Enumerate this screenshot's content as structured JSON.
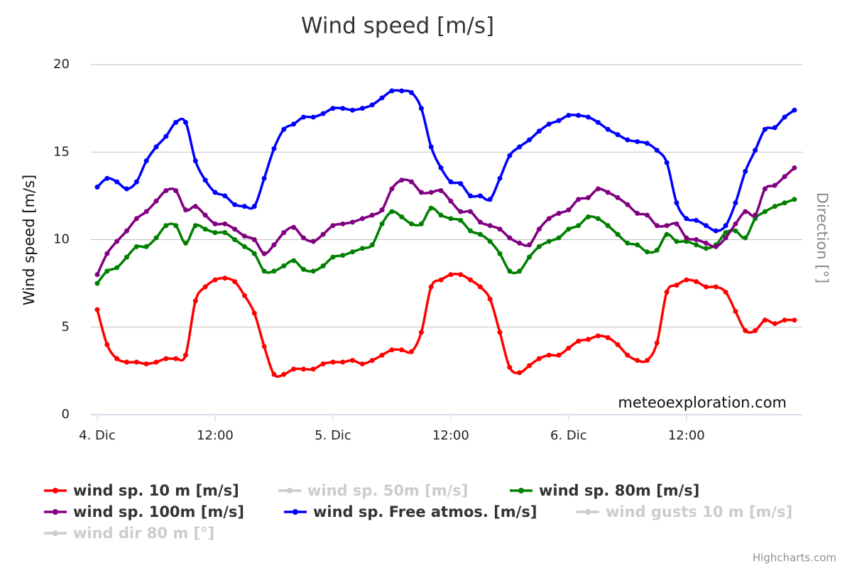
{
  "chart_data": {
    "type": "line",
    "title": "Wind speed [m/s]",
    "y_title": "Wind speed [m/s]",
    "y2_title": "Direction [°]",
    "credit": "meteoexploration.com",
    "credits_link": "Highcharts.com",
    "x": [
      0,
      1,
      2,
      3,
      4,
      5,
      6,
      7,
      8,
      9,
      10,
      11,
      12,
      13,
      14,
      15,
      16,
      17,
      18,
      19,
      20,
      21,
      22,
      23,
      24,
      25,
      26,
      27,
      28,
      29,
      30,
      31,
      32,
      33,
      34,
      35,
      36,
      37,
      38,
      39,
      40,
      41,
      42,
      43,
      44,
      45,
      46,
      47,
      48,
      49,
      50,
      51,
      52,
      53,
      54,
      55,
      56,
      57,
      58,
      59,
      60,
      61,
      62,
      63,
      64,
      65,
      66,
      67,
      68,
      69,
      70,
      71
    ],
    "xlim": [
      -0.65,
      71.8
    ],
    "xticks": [
      {
        "value": 0,
        "label": "4. Dic"
      },
      {
        "value": 12,
        "label": "12:00"
      },
      {
        "value": 24,
        "label": "5. Dic"
      },
      {
        "value": 36,
        "label": "12:00"
      },
      {
        "value": 48,
        "label": "6. Dic"
      },
      {
        "value": 60,
        "label": "12:00"
      }
    ],
    "ylim": [
      0,
      20
    ],
    "yticks": [
      0,
      5,
      10,
      15,
      20
    ],
    "grid": true,
    "legend": "bottom",
    "series": [
      {
        "name": "wind sp. 10 m [m/s]",
        "color": "#ff0000",
        "values": [
          6.0,
          4.0,
          3.2,
          3.0,
          3.0,
          2.9,
          3.0,
          3.2,
          3.2,
          3.4,
          6.5,
          7.3,
          7.7,
          7.8,
          7.6,
          6.8,
          5.8,
          3.9,
          2.3,
          2.3,
          2.6,
          2.6,
          2.6,
          2.9,
          3.0,
          3.0,
          3.1,
          2.9,
          3.1,
          3.4,
          3.7,
          3.7,
          3.6,
          4.7,
          7.3,
          7.7,
          8.0,
          8.0,
          7.7,
          7.3,
          6.6,
          4.7,
          2.7,
          2.4,
          2.8,
          3.2,
          3.4,
          3.4,
          3.8,
          4.2,
          4.3,
          4.5,
          4.4,
          4.0,
          3.4,
          3.1,
          3.1,
          4.1,
          7.0,
          7.4,
          7.7,
          7.6,
          7.3,
          7.3,
          7.0,
          5.9,
          4.8,
          4.8,
          5.4,
          5.2,
          5.4,
          5.4
        ]
      },
      {
        "name": "wind sp. 50m [m/s]",
        "visible": false
      },
      {
        "name": "wind sp. 80m [m/s]",
        "color": "#008000",
        "values": [
          7.5,
          8.2,
          8.4,
          9.0,
          9.6,
          9.6,
          10.1,
          10.8,
          10.8,
          9.8,
          10.8,
          10.6,
          10.4,
          10.4,
          10.0,
          9.6,
          9.2,
          8.2,
          8.2,
          8.5,
          8.8,
          8.3,
          8.2,
          8.5,
          9.0,
          9.1,
          9.3,
          9.5,
          9.7,
          10.9,
          11.6,
          11.3,
          10.9,
          10.9,
          11.8,
          11.4,
          11.2,
          11.1,
          10.5,
          10.3,
          9.9,
          9.2,
          8.2,
          8.2,
          9.0,
          9.6,
          9.9,
          10.1,
          10.6,
          10.8,
          11.3,
          11.2,
          10.8,
          10.3,
          9.8,
          9.7,
          9.3,
          9.4,
          10.3,
          9.9,
          9.9,
          9.7,
          9.5,
          9.7,
          10.4,
          10.5,
          10.1,
          11.2,
          11.6,
          11.9,
          12.1,
          12.3
        ]
      },
      {
        "name": "wind sp. 100m [m/s]",
        "color": "#800080",
        "values": [
          8.0,
          9.2,
          9.9,
          10.5,
          11.2,
          11.6,
          12.2,
          12.8,
          12.8,
          11.7,
          11.9,
          11.4,
          10.9,
          10.9,
          10.6,
          10.2,
          10.0,
          9.2,
          9.7,
          10.4,
          10.7,
          10.1,
          9.9,
          10.3,
          10.8,
          10.9,
          11.0,
          11.2,
          11.4,
          11.7,
          12.9,
          13.4,
          13.3,
          12.7,
          12.7,
          12.8,
          12.2,
          11.6,
          11.6,
          11.0,
          10.8,
          10.6,
          10.1,
          9.8,
          9.7,
          10.6,
          11.2,
          11.5,
          11.7,
          12.3,
          12.4,
          12.9,
          12.7,
          12.4,
          12.0,
          11.5,
          11.4,
          10.8,
          10.8,
          10.9,
          10.1,
          10.0,
          9.8,
          9.6,
          10.1,
          10.9,
          11.6,
          11.4,
          12.9,
          13.1,
          13.6,
          14.1
        ]
      },
      {
        "name": "wind sp. Free atmos. [m/s]",
        "color": "#0000ff",
        "values": [
          13.0,
          13.5,
          13.3,
          12.9,
          13.3,
          14.5,
          15.3,
          15.9,
          16.7,
          16.7,
          14.5,
          13.4,
          12.7,
          12.5,
          12.0,
          11.9,
          11.9,
          13.5,
          15.2,
          16.3,
          16.6,
          17.0,
          17.0,
          17.2,
          17.5,
          17.5,
          17.4,
          17.5,
          17.7,
          18.1,
          18.5,
          18.5,
          18.4,
          17.5,
          15.3,
          14.1,
          13.3,
          13.2,
          12.5,
          12.5,
          12.3,
          13.5,
          14.8,
          15.3,
          15.7,
          16.2,
          16.6,
          16.8,
          17.1,
          17.1,
          17.0,
          16.7,
          16.3,
          16.0,
          15.7,
          15.6,
          15.5,
          15.1,
          14.4,
          12.1,
          11.2,
          11.1,
          10.8,
          10.5,
          10.8,
          12.1,
          13.9,
          15.1,
          16.3,
          16.4,
          17.0,
          17.4
        ]
      },
      {
        "name": "wind gusts 10 m [m/s]",
        "visible": false
      },
      {
        "name": "wind dir 80 m [°]",
        "visible": false
      }
    ]
  }
}
